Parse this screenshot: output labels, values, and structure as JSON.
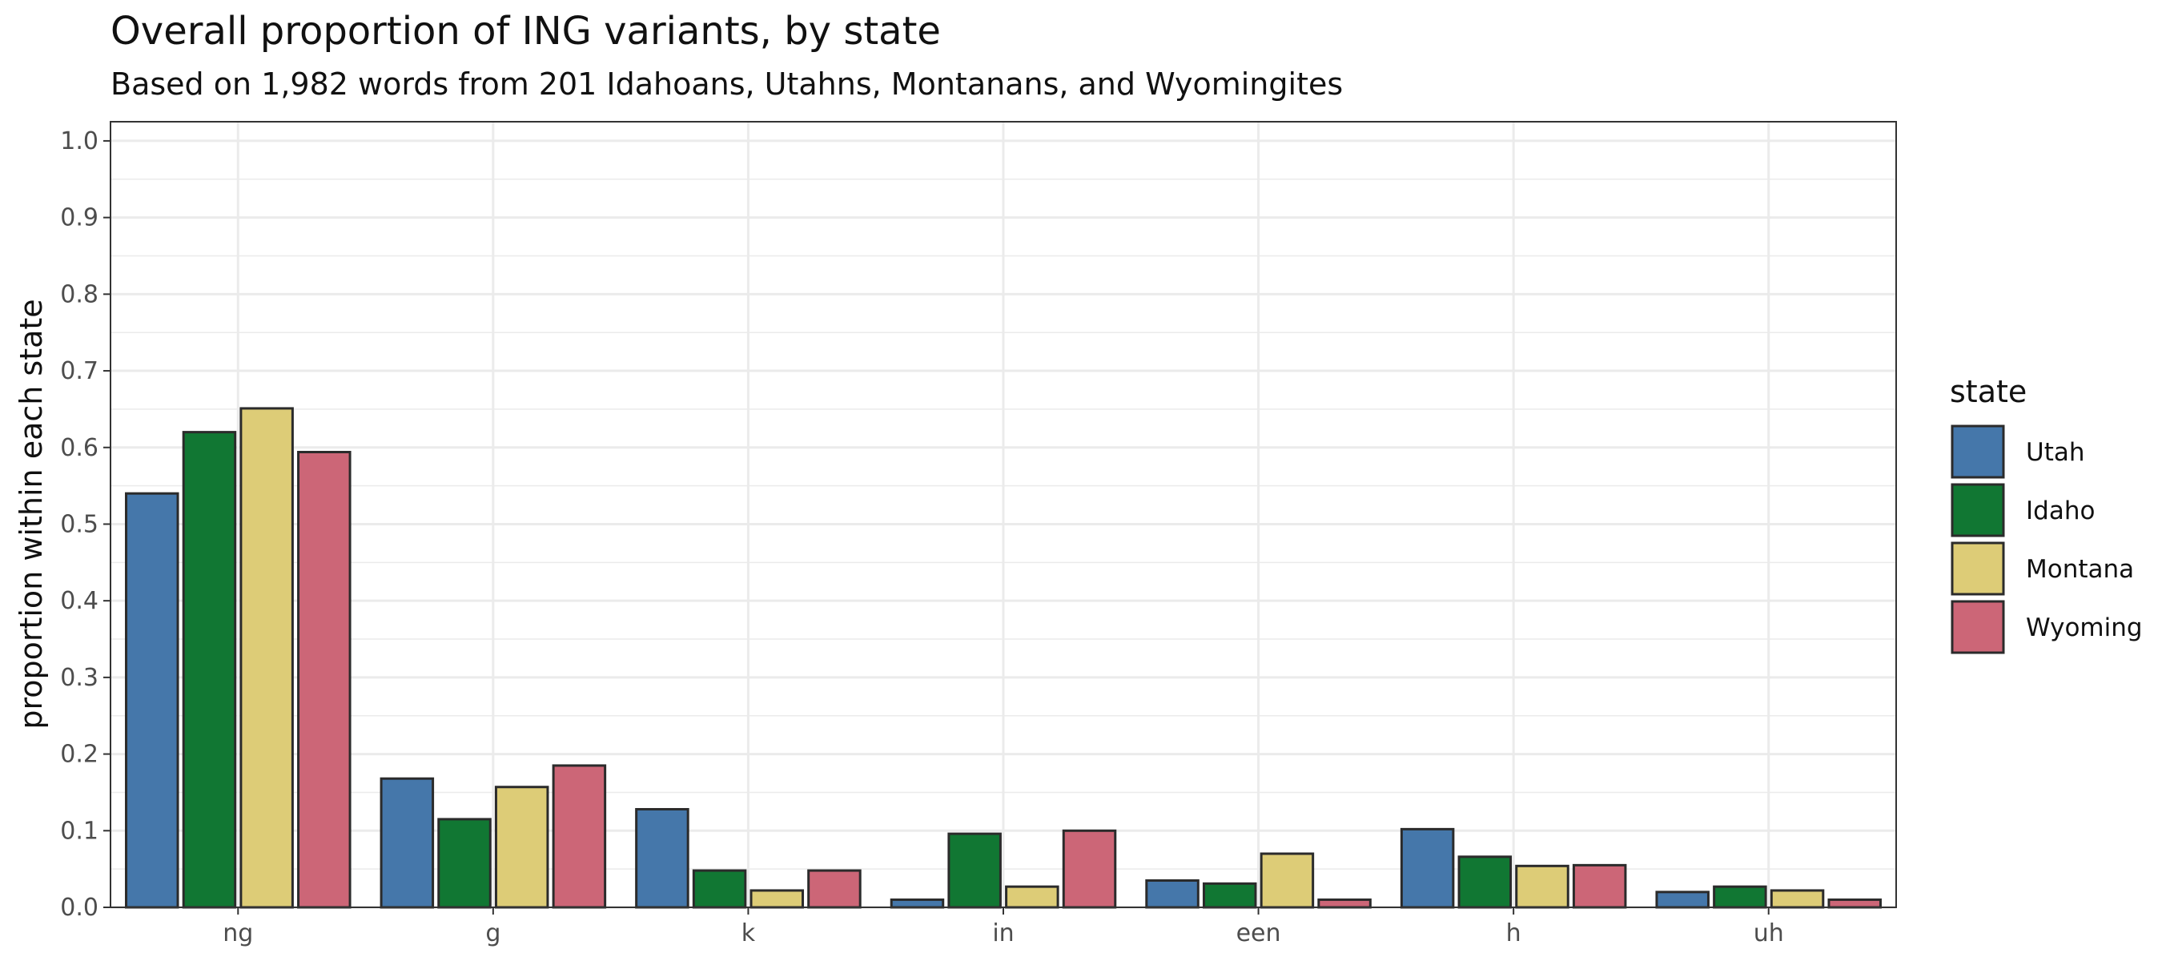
{
  "chart_data": {
    "type": "bar",
    "title": "Overall proportion of ING variants, by state",
    "subtitle": "Based on 1,982 words from 201 Idahoans, Utahns, Montanans, and Wyomingites",
    "xlabel": "",
    "ylabel": "proportion within each state",
    "ylim": [
      0,
      1.0
    ],
    "yticks": [
      "0.0",
      "0.1",
      "0.2",
      "0.3",
      "0.4",
      "0.5",
      "0.6",
      "0.7",
      "0.8",
      "0.9",
      "1.0"
    ],
    "categories": [
      "ng",
      "g",
      "k",
      "in",
      "een",
      "h",
      "uh"
    ],
    "grid": true,
    "legend": {
      "title": "state",
      "position": "right"
    },
    "series": [
      {
        "name": "Utah",
        "color": "#4577aa",
        "values": [
          0.54,
          0.168,
          0.128,
          0.01,
          0.035,
          0.102,
          0.02
        ]
      },
      {
        "name": "Idaho",
        "color": "#117733",
        "values": [
          0.62,
          0.115,
          0.048,
          0.096,
          0.031,
          0.066,
          0.027
        ]
      },
      {
        "name": "Montana",
        "color": "#ddcc77",
        "values": [
          0.651,
          0.157,
          0.022,
          0.027,
          0.07,
          0.054,
          0.022
        ]
      },
      {
        "name": "Wyoming",
        "color": "#cc6677",
        "values": [
          0.594,
          0.185,
          0.048,
          0.1,
          0.01,
          0.055,
          0.01
        ]
      }
    ]
  }
}
